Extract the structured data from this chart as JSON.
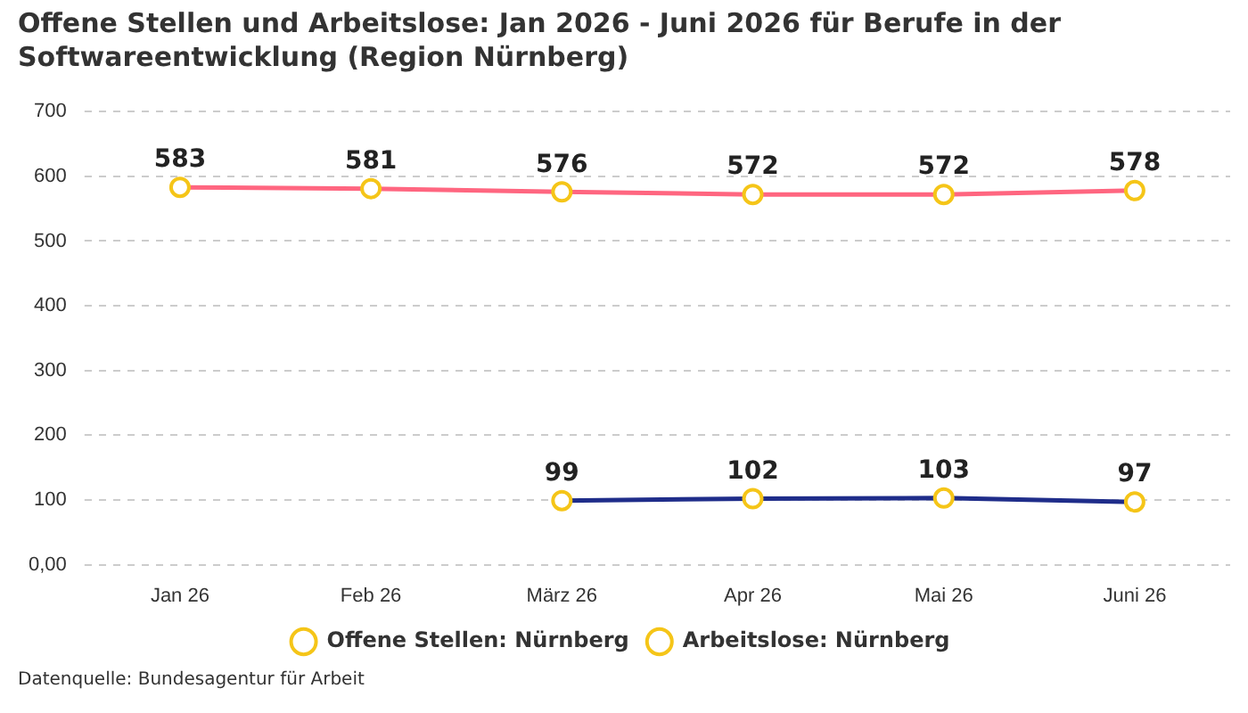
{
  "chart_data": {
    "type": "line",
    "title": "Offene Stellen und Arbeitslose: Jan 2026 - Juni 2026 für Berufe in der Softwareentwicklung (Region Nürnberg)",
    "categories": [
      "Jan 26",
      "Feb 26",
      "März 26",
      "Apr 26",
      "Mai 26",
      "Juni 26"
    ],
    "series": [
      {
        "name": "Offene Stellen: Nürnberg",
        "color": "#1f2d8a",
        "values": [
          null,
          null,
          99,
          102,
          103,
          97
        ]
      },
      {
        "name": "Arbeitslose: Nürnberg",
        "color": "#ff6680",
        "values": [
          583,
          581,
          576,
          572,
          572,
          578
        ]
      }
    ],
    "ylim": [
      0,
      700
    ],
    "yticks": [
      {
        "value": 0,
        "label": "0,00"
      },
      100,
      200,
      300,
      400,
      500,
      600,
      700
    ],
    "grid": "y",
    "legend": "bottom",
    "marker": "circle",
    "data_labels": true,
    "annotations": [
      "Datenquelle: Bundesagentur für Arbeit"
    ]
  }
}
